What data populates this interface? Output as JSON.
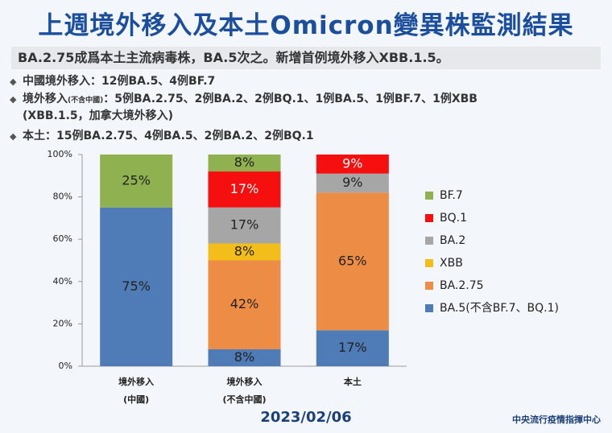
{
  "header": {
    "title": "上週境外移入及本土Omicron變異株監測結果"
  },
  "summary": "BA.2.75成爲本土主流病毒株，BA.5次之。新增首例境外移入XBB.1.5。",
  "bullets": [
    [
      "中國境外移入：12例BA.5、4例BF.7"
    ],
    [
      "境外移入",
      "(不含中國)",
      "：5例BA.2.75、2例BA.2、2例BQ.1、1例BA.5、1例BF.7、1例XBB",
      "(XBB.1.5，加拿大境外移入)"
    ],
    [
      "本土：15例BA.2.75、4例BA.5、2例BA.2、2例BQ.1"
    ]
  ],
  "chart_data": {
    "type": "stacked_bar",
    "categories": [
      [
        "境外移入",
        "(中國)"
      ],
      [
        "境外移入",
        "(不含中國)"
      ],
      [
        "本土"
      ]
    ],
    "series": [
      {
        "name": "BA.5(不含BF.7、BQ.1)",
        "color": "#4f7bb6",
        "values": [
          75,
          8,
          17
        ],
        "value_labels": [
          "75%",
          "8%",
          "17%"
        ]
      },
      {
        "name": "BA.2.75",
        "color": "#ed8d45",
        "values": [
          0,
          42,
          65
        ],
        "value_labels": [
          null,
          "42%",
          "65%"
        ]
      },
      {
        "name": "XBB",
        "color": "#f3bd1a",
        "values": [
          0,
          8,
          0
        ],
        "value_labels": [
          null,
          "8%",
          null
        ]
      },
      {
        "name": "BA.2",
        "color": "#a6a6a6",
        "values": [
          0,
          17,
          9
        ],
        "value_labels": [
          null,
          "17%",
          "9%"
        ]
      },
      {
        "name": "BQ.1",
        "color": "#f50f0f",
        "values": [
          0,
          17,
          9
        ],
        "value_labels": [
          null,
          "17%",
          "9%"
        ]
      },
      {
        "name": "BF.7",
        "color": "#8fb150",
        "values": [
          25,
          8,
          0
        ],
        "value_labels": [
          "25%",
          "8%",
          null
        ]
      }
    ],
    "ylim": [
      0,
      100
    ],
    "yticks": [
      {
        "value": 0,
        "label": "0%"
      },
      {
        "value": 20,
        "label": "20%"
      },
      {
        "value": 40,
        "label": "40%"
      },
      {
        "value": 60,
        "label": "60%"
      },
      {
        "value": 80,
        "label": "80%"
      },
      {
        "value": 100,
        "label": "100%"
      }
    ],
    "legend": "right"
  },
  "date": "2023/02/06",
  "source": "中央流行疫情指揮中心"
}
